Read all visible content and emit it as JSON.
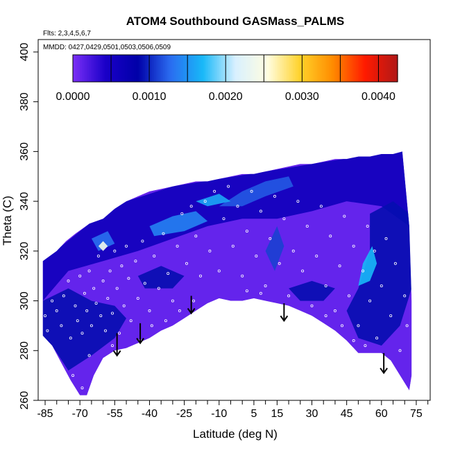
{
  "chart_data": {
    "type": "heatmap",
    "title": "ATOM4 Southbound GASMass_PALMS",
    "flights_note": "Flts: 2,3,4,5,6,7",
    "dates_note": "MMDD: 0427,0429,0501,0503,0506,0509",
    "xlabel": "Latitude (deg N)",
    "ylabel": "Theta (C)",
    "xlim": [
      -88,
      81
    ],
    "ylim": [
      260,
      405
    ],
    "x_ticks": [
      -85,
      -70,
      -55,
      -40,
      -25,
      -10,
      5,
      15,
      30,
      45,
      60,
      75
    ],
    "x_minor_ticks": [
      -80,
      -75,
      -65,
      -60,
      -50,
      -45,
      -35,
      -30,
      -20,
      -15,
      -5,
      0,
      10,
      20,
      25,
      35,
      40,
      50,
      55,
      65,
      70,
      80
    ],
    "y_ticks": [
      260,
      280,
      300,
      320,
      340,
      360,
      380,
      400
    ],
    "colorbar": {
      "min": 0.0,
      "max": 0.00425,
      "tick_values": [
        0.0,
        0.001,
        0.002,
        0.003,
        0.004
      ],
      "tick_labels": [
        "0.0000",
        "0.0010",
        "0.0020",
        "0.0030",
        "0.0040"
      ],
      "divider_values": [
        0.0005,
        0.0015,
        0.0025,
        0.0035
      ],
      "colors": [
        "#7b2ff7",
        "#1a00c8",
        "#0000a8",
        "#2a6cf0",
        "#18b8f8",
        "#d8f0ff",
        "#fffde0",
        "#ffd22a",
        "#ff8c00",
        "#ff1a00",
        "#b01818"
      ]
    },
    "field_upper_boundary": [
      [
        -86,
        316
      ],
      [
        -80,
        320
      ],
      [
        -76,
        324
      ],
      [
        -72,
        327
      ],
      [
        -66,
        331
      ],
      [
        -60,
        333
      ],
      [
        -55,
        337
      ],
      [
        -50,
        340
      ],
      [
        -45,
        342
      ],
      [
        -40,
        344
      ],
      [
        -35,
        345
      ],
      [
        -30,
        346
      ],
      [
        -25,
        347
      ],
      [
        -20,
        348
      ],
      [
        -15,
        348
      ],
      [
        -10,
        349
      ],
      [
        -5,
        350
      ],
      [
        0,
        351
      ],
      [
        5,
        351
      ],
      [
        10,
        352
      ],
      [
        15,
        353
      ],
      [
        20,
        354
      ],
      [
        25,
        355
      ],
      [
        30,
        355
      ],
      [
        35,
        356
      ],
      [
        40,
        357
      ],
      [
        45,
        357
      ],
      [
        50,
        358
      ],
      [
        55,
        358
      ],
      [
        60,
        359
      ],
      [
        65,
        359
      ],
      [
        69,
        360
      ],
      [
        72,
        330
      ],
      [
        73,
        300
      ],
      [
        73,
        270
      ],
      [
        72,
        264
      ]
    ],
    "field_lower_boundary": [
      [
        72,
        264
      ],
      [
        68,
        270
      ],
      [
        64,
        276
      ],
      [
        60,
        279
      ],
      [
        55,
        279
      ],
      [
        50,
        279
      ],
      [
        45,
        284
      ],
      [
        40,
        288
      ],
      [
        35,
        291
      ],
      [
        30,
        294
      ],
      [
        25,
        296
      ],
      [
        20,
        298
      ],
      [
        15,
        299
      ],
      [
        10,
        300
      ],
      [
        5,
        301
      ],
      [
        0,
        300
      ],
      [
        -5,
        300
      ],
      [
        -10,
        301
      ],
      [
        -15,
        299
      ],
      [
        -20,
        296
      ],
      [
        -25,
        293
      ],
      [
        -30,
        290
      ],
      [
        -35,
        288
      ],
      [
        -40,
        285
      ],
      [
        -45,
        283
      ],
      [
        -50,
        281
      ],
      [
        -55,
        280
      ],
      [
        -60,
        277
      ],
      [
        -64,
        270
      ],
      [
        -67,
        262
      ],
      [
        -70,
        262
      ],
      [
        -74,
        268
      ],
      [
        -78,
        275
      ],
      [
        -82,
        282
      ],
      [
        -86,
        286
      ]
    ],
    "patches": [
      {
        "value": 0.0006,
        "pts": [
          [
            -86,
            316
          ],
          [
            -66,
            331
          ],
          [
            -50,
            340
          ],
          [
            -30,
            346
          ],
          [
            -10,
            349
          ],
          [
            10,
            352
          ],
          [
            30,
            355
          ],
          [
            50,
            358
          ],
          [
            69,
            360
          ],
          [
            72,
            330
          ],
          [
            60,
            338
          ],
          [
            45,
            340
          ],
          [
            30,
            336
          ],
          [
            15,
            333
          ],
          [
            0,
            333
          ],
          [
            -15,
            330
          ],
          [
            -30,
            325
          ],
          [
            -45,
            320
          ],
          [
            -60,
            316
          ],
          [
            -75,
            312
          ],
          [
            -86,
            300
          ]
        ]
      },
      {
        "value": 0.0009,
        "pts": [
          [
            -86,
            300
          ],
          [
            -75,
            305
          ],
          [
            -65,
            300
          ],
          [
            -55,
            298
          ],
          [
            -50,
            293
          ],
          [
            -55,
            285
          ],
          [
            -65,
            278
          ],
          [
            -75,
            272
          ],
          [
            -82,
            282
          ],
          [
            -86,
            286
          ]
        ]
      },
      {
        "value": 0.0009,
        "pts": [
          [
            55,
            335
          ],
          [
            65,
            340
          ],
          [
            72,
            335
          ],
          [
            73,
            305
          ],
          [
            68,
            290
          ],
          [
            60,
            282
          ],
          [
            50,
            285
          ],
          [
            45,
            296
          ],
          [
            50,
            305
          ],
          [
            55,
            320
          ]
        ]
      },
      {
        "value": 0.0012,
        "pts": [
          [
            -10,
            338
          ],
          [
            0,
            344
          ],
          [
            10,
            348
          ],
          [
            20,
            350
          ],
          [
            22,
            346
          ],
          [
            10,
            342
          ],
          [
            0,
            338
          ]
        ]
      },
      {
        "value": 0.0014,
        "pts": [
          [
            -40,
            330
          ],
          [
            -30,
            334
          ],
          [
            -20,
            336
          ],
          [
            -15,
            332
          ],
          [
            -25,
            328
          ],
          [
            -38,
            326
          ]
        ]
      },
      {
        "value": 0.0013,
        "pts": [
          [
            -65,
            325
          ],
          [
            -58,
            328
          ],
          [
            -55,
            323
          ],
          [
            -62,
            320
          ]
        ]
      },
      {
        "value": 0.0017,
        "pts": [
          [
            52,
            315
          ],
          [
            56,
            322
          ],
          [
            58,
            315
          ],
          [
            55,
            308
          ],
          [
            50,
            306
          ]
        ]
      },
      {
        "value": 0.0011,
        "pts": [
          [
            10,
            320
          ],
          [
            15,
            330
          ],
          [
            18,
            322
          ],
          [
            14,
            312
          ]
        ]
      },
      {
        "value": 0.0009,
        "pts": [
          [
            -45,
            310
          ],
          [
            -35,
            314
          ],
          [
            -25,
            310
          ],
          [
            -30,
            305
          ],
          [
            -42,
            305
          ]
        ]
      },
      {
        "value": 0.0009,
        "pts": [
          [
            20,
            305
          ],
          [
            30,
            308
          ],
          [
            40,
            305
          ],
          [
            35,
            300
          ],
          [
            25,
            300
          ]
        ]
      },
      {
        "value": 0.0016,
        "pts": [
          [
            -20,
            340
          ],
          [
            -10,
            343
          ],
          [
            -5,
            340
          ],
          [
            -15,
            338
          ]
        ]
      },
      {
        "value": 0.0024,
        "pts": [
          [
            -62,
            322
          ],
          [
            -60,
            324
          ],
          [
            -58,
            322
          ],
          [
            -60,
            320
          ]
        ]
      }
    ],
    "sample_points": [
      [
        -80,
        296
      ],
      [
        -78,
        290
      ],
      [
        -77,
        302
      ],
      [
        -75,
        308
      ],
      [
        -74,
        285
      ],
      [
        -72,
        298
      ],
      [
        -71,
        292
      ],
      [
        -70,
        310
      ],
      [
        -69,
        287
      ],
      [
        -68,
        303
      ],
      [
        -67,
        296
      ],
      [
        -66,
        312
      ],
      [
        -65,
        290
      ],
      [
        -64,
        305
      ],
      [
        -63,
        299
      ],
      [
        -62,
        318
      ],
      [
        -61,
        294
      ],
      [
        -60,
        308
      ],
      [
        -59,
        288
      ],
      [
        -58,
        301
      ],
      [
        -57,
        312
      ],
      [
        -56,
        295
      ],
      [
        -55,
        320
      ],
      [
        -54,
        305
      ],
      [
        -53,
        287
      ],
      [
        -52,
        314
      ],
      [
        -51,
        298
      ],
      [
        -50,
        322
      ],
      [
        -49,
        309
      ],
      [
        -48,
        292
      ],
      [
        -46,
        316
      ],
      [
        -45,
        301
      ],
      [
        -43,
        324
      ],
      [
        -42,
        307
      ],
      [
        -40,
        296
      ],
      [
        -38,
        318
      ],
      [
        -36,
        305
      ],
      [
        -34,
        327
      ],
      [
        -32,
        311
      ],
      [
        -30,
        300
      ],
      [
        -28,
        322
      ],
      [
        -26,
        335
      ],
      [
        -24,
        315
      ],
      [
        -22,
        338
      ],
      [
        -20,
        326
      ],
      [
        -18,
        310
      ],
      [
        -16,
        340
      ],
      [
        -14,
        320
      ],
      [
        -12,
        344
      ],
      [
        -10,
        312
      ],
      [
        -8,
        333
      ],
      [
        -6,
        346
      ],
      [
        -4,
        322
      ],
      [
        -2,
        338
      ],
      [
        0,
        310
      ],
      [
        2,
        328
      ],
      [
        4,
        344
      ],
      [
        6,
        318
      ],
      [
        8,
        336
      ],
      [
        10,
        306
      ],
      [
        12,
        325
      ],
      [
        14,
        342
      ],
      [
        16,
        315
      ],
      [
        18,
        333
      ],
      [
        20,
        302
      ],
      [
        22,
        320
      ],
      [
        24,
        340
      ],
      [
        26,
        312
      ],
      [
        28,
        330
      ],
      [
        30,
        298
      ],
      [
        32,
        318
      ],
      [
        34,
        338
      ],
      [
        36,
        306
      ],
      [
        38,
        326
      ],
      [
        40,
        296
      ],
      [
        42,
        314
      ],
      [
        44,
        334
      ],
      [
        46,
        302
      ],
      [
        48,
        322
      ],
      [
        50,
        290
      ],
      [
        52,
        312
      ],
      [
        54,
        330
      ],
      [
        55,
        300
      ],
      [
        57,
        320
      ],
      [
        58,
        285
      ],
      [
        60,
        306
      ],
      [
        62,
        325
      ],
      [
        64,
        294
      ],
      [
        66,
        315
      ],
      [
        68,
        280
      ],
      [
        70,
        302
      ],
      [
        71,
        290
      ],
      [
        -84,
        288
      ],
      [
        -82,
        300
      ],
      [
        -85,
        294
      ],
      [
        -73,
        270
      ],
      [
        -69,
        265
      ],
      [
        -66,
        278
      ],
      [
        -44,
        284
      ],
      [
        -39,
        290
      ],
      [
        -56,
        282
      ],
      [
        -33,
        292
      ],
      [
        -27,
        296
      ],
      [
        -21,
        300
      ],
      [
        2,
        304
      ],
      [
        8,
        303
      ],
      [
        36,
        294
      ],
      [
        43,
        290
      ],
      [
        48,
        284
      ],
      [
        53,
        282
      ]
    ],
    "arrows": [
      {
        "lat": -54,
        "theta_top": 287,
        "theta_tip": 278
      },
      {
        "lat": -44,
        "theta_top": 291,
        "theta_tip": 283
      },
      {
        "lat": -22,
        "theta_top": 302,
        "theta_tip": 295
      },
      {
        "lat": 18,
        "theta_top": 299,
        "theta_tip": 292
      },
      {
        "lat": 61,
        "theta_top": 279,
        "theta_tip": 271
      }
    ]
  }
}
